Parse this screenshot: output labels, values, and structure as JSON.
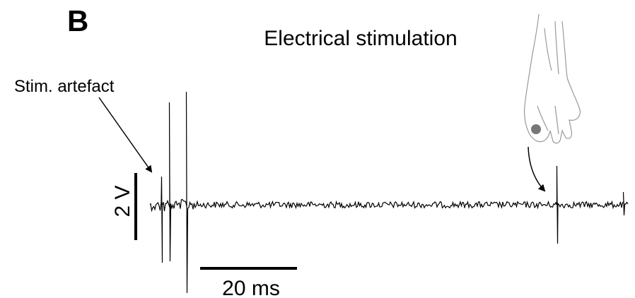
{
  "panel_label": "B",
  "title": "Electrical stimulation",
  "annotation": "Stim. artefact",
  "scale_bars": {
    "vertical": "2 V",
    "horizontal": "20 ms"
  }
}
